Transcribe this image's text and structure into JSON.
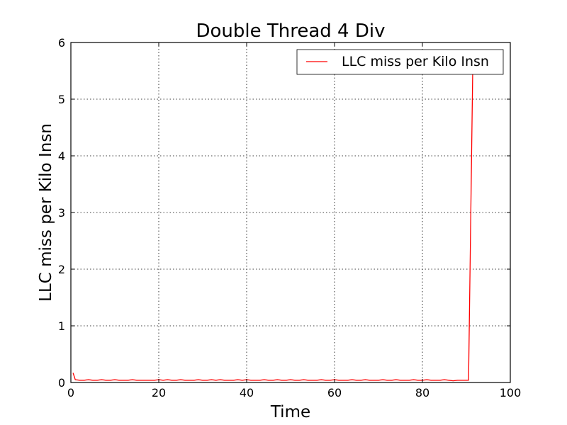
{
  "chart_data": {
    "type": "line",
    "title": "Double Thread 4 Div",
    "xlabel": "Time",
    "ylabel": "LLC miss per Kilo Insn",
    "xlim": [
      0,
      100
    ],
    "ylim": [
      0,
      6
    ],
    "xticks": [
      "0",
      "20",
      "40",
      "60",
      "80",
      "100"
    ],
    "yticks": [
      "0",
      "1",
      "2",
      "3",
      "4",
      "5",
      "6"
    ],
    "grid": true,
    "legend": {
      "placement": "top-right"
    },
    "series": [
      {
        "name": "LLC miss per Kilo Insn",
        "color": "#ff0000",
        "x": [
          0.5,
          1,
          2,
          3,
          4,
          5,
          6,
          7,
          8,
          9,
          10,
          11,
          12,
          13,
          14,
          15,
          16,
          17,
          18,
          19,
          20,
          21,
          22,
          23,
          24,
          25,
          26,
          27,
          28,
          29,
          30,
          31,
          32,
          33,
          34,
          35,
          36,
          37,
          38,
          39,
          40,
          41,
          42,
          43,
          44,
          45,
          46,
          47,
          48,
          49,
          50,
          51,
          52,
          53,
          54,
          55,
          56,
          57,
          58,
          59,
          60,
          61,
          62,
          63,
          64,
          65,
          66,
          67,
          68,
          69,
          70,
          71,
          72,
          73,
          74,
          75,
          76,
          77,
          78,
          79,
          80,
          81,
          82,
          83,
          84,
          85,
          86,
          87,
          88,
          89,
          90,
          90.5,
          91.5
        ],
        "y": [
          0.17,
          0.05,
          0.04,
          0.04,
          0.05,
          0.04,
          0.04,
          0.05,
          0.04,
          0.04,
          0.05,
          0.04,
          0.04,
          0.04,
          0.05,
          0.04,
          0.04,
          0.04,
          0.04,
          0.04,
          0.05,
          0.04,
          0.05,
          0.04,
          0.04,
          0.05,
          0.04,
          0.04,
          0.04,
          0.05,
          0.04,
          0.04,
          0.05,
          0.04,
          0.05,
          0.04,
          0.04,
          0.04,
          0.05,
          0.04,
          0.05,
          0.04,
          0.04,
          0.04,
          0.05,
          0.04,
          0.04,
          0.05,
          0.04,
          0.04,
          0.05,
          0.04,
          0.04,
          0.05,
          0.04,
          0.04,
          0.04,
          0.05,
          0.04,
          0.04,
          0.05,
          0.04,
          0.04,
          0.04,
          0.05,
          0.04,
          0.04,
          0.05,
          0.04,
          0.04,
          0.04,
          0.05,
          0.04,
          0.04,
          0.05,
          0.04,
          0.04,
          0.04,
          0.05,
          0.04,
          0.04,
          0.05,
          0.04,
          0.04,
          0.04,
          0.05,
          0.04,
          0.03,
          0.04,
          0.04,
          0.04,
          0.04,
          5.8
        ]
      }
    ]
  }
}
